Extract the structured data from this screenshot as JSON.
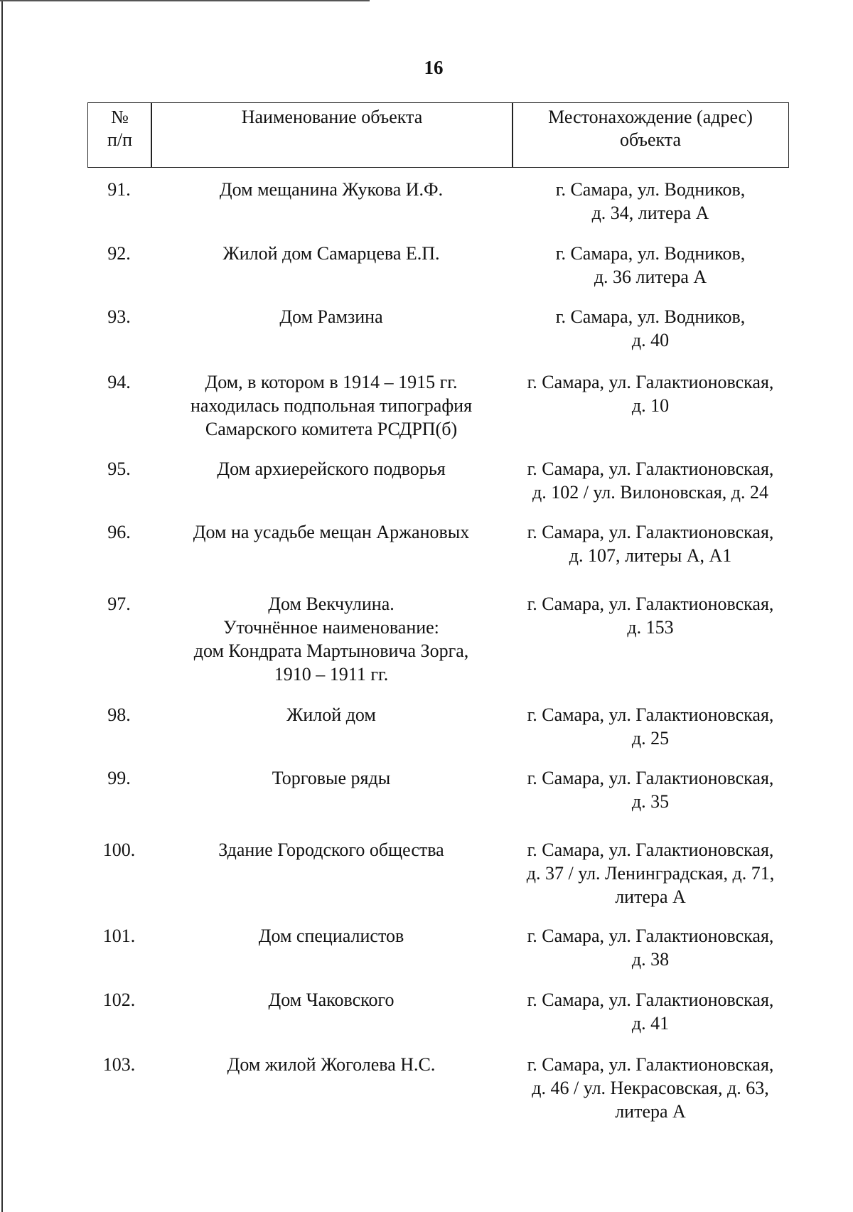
{
  "page_number": "16",
  "table": {
    "headers": [
      "№\nп/п",
      "Наименование объекта",
      "Местонахождение (адрес)\nобъекта"
    ],
    "rows": [
      {
        "num": "91.",
        "name": "Дом мещанина Жукова И.Ф.",
        "address": "г. Самара, ул. Водников,\nд. 34, литера А"
      },
      {
        "num": "92.",
        "name": "Жилой дом Самарцева Е.П.",
        "address": "г. Самара, ул. Водников,\nд. 36 литера А"
      },
      {
        "num": "93.",
        "name": "Дом Рамзина",
        "address": "г. Самара, ул. Водников,\nд. 40"
      },
      {
        "num": "94.",
        "name": "Дом, в котором в 1914 – 1915 гг.\nнаходилась подпольная типография\nСамарского комитета РСДРП(б)",
        "address": "г. Самара, ул. Галактионовская,\nд. 10"
      },
      {
        "num": "95.",
        "name": "Дом архиерейского подворья",
        "address": "г. Самара, ул. Галактионовская,\nд. 102 / ул. Вилоновская, д. 24"
      },
      {
        "num": "96.",
        "name": "Дом на усадьбе мещан Аржановых",
        "address": "г. Самара, ул. Галактионовская,\nд. 107, литеры А, А1"
      },
      {
        "num": "97.",
        "name": "Дом Векчулина.\nУточнённое наименование:\nдом Кондрата Мартыновича Зорга,\n1910 – 1911 гг.",
        "address": "г. Самара, ул. Галактионовская,\nд. 153"
      },
      {
        "num": "98.",
        "name": "Жилой дом",
        "address": "г. Самара, ул. Галактионовская,\nд. 25"
      },
      {
        "num": "99.",
        "name": "Торговые ряды",
        "address": "г. Самара, ул. Галактионовская,\nд. 35"
      },
      {
        "num": "100.",
        "name": "Здание Городского общества",
        "address": "г. Самара, ул. Галактионовская,\nд. 37 / ул. Ленинградская, д. 71,\nлитера А"
      },
      {
        "num": "101.",
        "name": "Дом специалистов",
        "address": "г. Самара, ул. Галактионовская,\nд. 38"
      },
      {
        "num": "102.",
        "name": "Дом Чаковского",
        "address": "г. Самара, ул. Галактионовская,\nд. 41"
      },
      {
        "num": "103.",
        "name": "Дом жилой Жоголева Н.С.",
        "address": "г. Самара, ул. Галактионовская,\nд. 46 / ул. Некрасовская, д. 63,\nлитера А"
      }
    ]
  }
}
